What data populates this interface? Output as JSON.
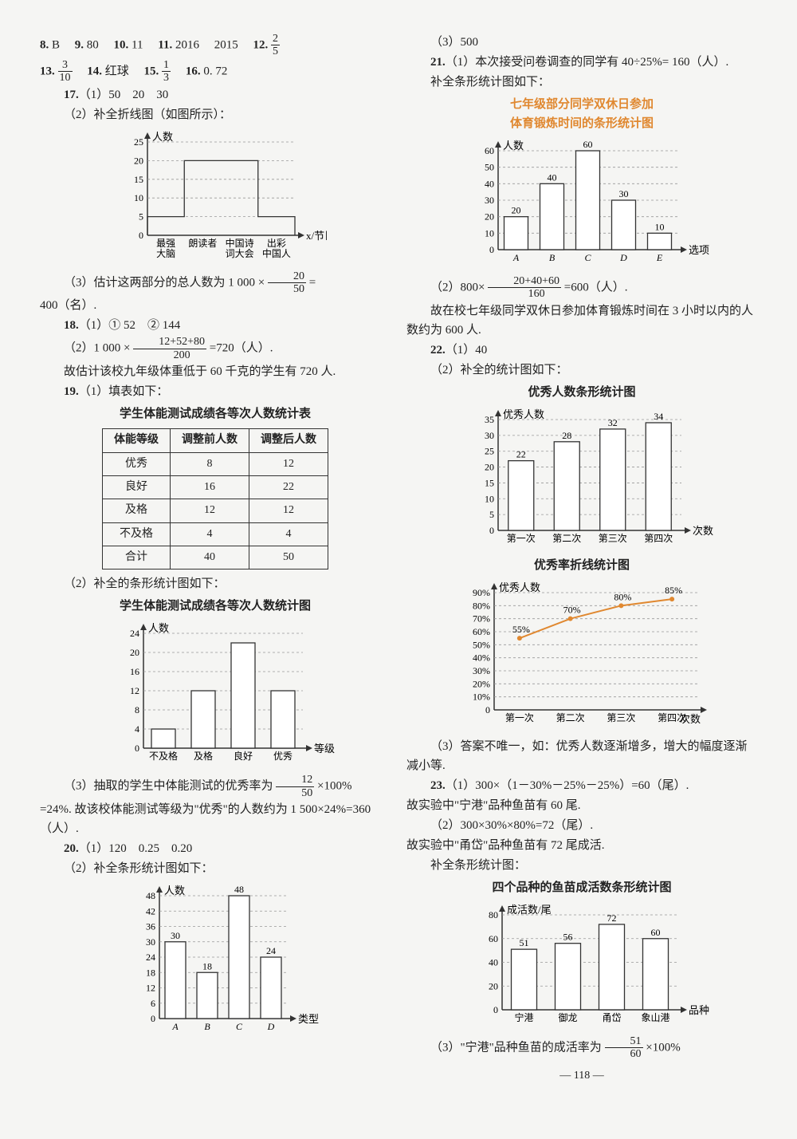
{
  "col1": {
    "line1_parts": [
      "8.",
      "B",
      "9.",
      "80",
      "10.",
      "11",
      "11.",
      "2016",
      "2015",
      "12."
    ],
    "line1_frac": {
      "num": "2",
      "den": "5"
    },
    "line2_a": "13.",
    "line2_frac1": {
      "num": "3",
      "den": "10"
    },
    "line2_b": "14.",
    "line2_red": "红球",
    "line2_c": "15.",
    "line2_frac2": {
      "num": "1",
      "den": "3"
    },
    "line2_d": "16.",
    "line2_val": "0. 72",
    "l17a": "17.（1）50　20　30",
    "l17b": "（2）补全折线图（如图所示）：",
    "chart17": {
      "ylabel": "人数",
      "xlabel": "x/节目",
      "yticks": [
        0,
        5,
        10,
        15,
        20,
        25
      ],
      "cats": [
        "最强\n大脑",
        "朗读者",
        "中国诗\n词大会",
        "出彩\n中国人"
      ],
      "vals": [
        5,
        20,
        20,
        5
      ],
      "stroke": "#333",
      "dash": "#999"
    },
    "l17c_a": "（3）估计这两部分的总人数为 1 000 ×",
    "l17c_frac": {
      "num": "20",
      "den": "50"
    },
    "l17c_b": " =",
    "l17c_res": "400（名）.",
    "l18a": "18.（1）① 52　② 144",
    "l18b_a": "（2）1 000 ×",
    "l18b_frac": {
      "num": "12+52+80",
      "den": "200"
    },
    "l18b_b": "=720（人）.",
    "l18c": "故估计该校九年级体重低于 60 千克的学生有 720 人.",
    "l19a": "19.（1）填表如下：",
    "table19_title": "学生体能测试成绩各等次人数统计表",
    "table19": {
      "headers": [
        "体能等级",
        "调整前人数",
        "调整后人数"
      ],
      "rows": [
        [
          "优秀",
          "8",
          "12"
        ],
        [
          "良好",
          "16",
          "22"
        ],
        [
          "及格",
          "12",
          "12"
        ],
        [
          "不及格",
          "4",
          "4"
        ],
        [
          "合计",
          "40",
          "50"
        ]
      ]
    },
    "l19b": "（2）补全的条形统计图如下：",
    "chart19_title": "学生体能测试成绩各等次人数统计图",
    "chart19": {
      "ylabel": "人数",
      "xlabel": "等级",
      "yticks": [
        0,
        4,
        8,
        12,
        16,
        20,
        24
      ],
      "cats": [
        "不及格",
        "及格",
        "良好",
        "优秀"
      ],
      "vals": [
        4,
        12,
        22,
        12
      ],
      "stroke": "#333",
      "dash": "#999"
    },
    "l19c_a": "（3）抽取的学生中体能测试的优秀率为",
    "l19c_frac": {
      "num": "12",
      "den": "50"
    },
    "l19c_b": "×100%",
    "l19d": "=24%. 故该校体能测试等级为\"优秀\"的人数约为 1 500×24%=360（人）.",
    "l20a": "20.（1）120　0.25　0.20",
    "l20b": "（2）补全条形统计图如下：",
    "chart20": {
      "ylabel": "人数",
      "xlabel": "类型",
      "yticks": [
        0,
        6,
        12,
        18,
        24,
        30,
        36,
        42,
        48
      ],
      "cats": [
        "A",
        "B",
        "C",
        "D"
      ],
      "vals": [
        30,
        18,
        48,
        24
      ],
      "stroke": "#333",
      "dash": "#999"
    }
  },
  "col2": {
    "l20c": "（3）500",
    "l21a": "21.（1）本次接受问卷调查的同学有 40÷25%= 160（人）.",
    "l21b": "补全条形统计图如下：",
    "chart21_title1": "七年级部分同学双休日参加",
    "chart21_title2": "体育锻炼时间的条形统计图",
    "chart21": {
      "ylabel": "人数",
      "xlabel": "选项",
      "yticks": [
        0,
        10,
        20,
        30,
        40,
        50,
        60
      ],
      "cats": [
        "A",
        "B",
        "C",
        "D",
        "E"
      ],
      "vals": [
        20,
        40,
        60,
        30,
        10
      ],
      "stroke": "#333",
      "dash": "#999"
    },
    "l21c_a": "（2）800×",
    "l21c_frac": {
      "num": "20+40+60",
      "den": "160"
    },
    "l21c_b": "=600（人）.",
    "l21d": "故在校七年级同学双休日参加体育锻炼时间在 3 小时以内的人数约为 600 人.",
    "l22a": "22.（1）40",
    "l22b": "（2）补全的统计图如下：",
    "chart22a_title": "优秀人数条形统计图",
    "chart22a": {
      "ylabel": "优秀人数",
      "xlabel": "次数",
      "yticks": [
        0,
        5,
        10,
        15,
        20,
        25,
        30,
        35
      ],
      "cats": [
        "第一次",
        "第二次",
        "第三次",
        "第四次"
      ],
      "vals": [
        22,
        28,
        32,
        34
      ],
      "stroke": "#333",
      "dash": "#999"
    },
    "chart22b_title": "优秀率折线统计图",
    "chart22b": {
      "ylabel": "优秀人数",
      "xlabel": "次数",
      "yticks": [
        "0",
        "10%",
        "20%",
        "30%",
        "40%",
        "50%",
        "60%",
        "70%",
        "80%",
        "90%"
      ],
      "cats": [
        "第一次",
        "第二次",
        "第三次",
        "第四次"
      ],
      "vals": [
        55,
        70,
        80,
        85
      ],
      "labels": [
        "55%",
        "70%",
        "80%",
        "85%"
      ],
      "stroke": "#333",
      "line": "#e08830",
      "dash": "#999"
    },
    "l22c": "（3）答案不唯一，如：优秀人数逐渐增多，增大的幅度逐渐减小等.",
    "l23a": "23.（1）300×（1－30%－25%－25%）=60（尾）.",
    "l23b": "故实验中\"宁港\"品种鱼苗有 60 尾.",
    "l23c": "（2）300×30%×80%=72（尾）.",
    "l23d": "故实验中\"甬岱\"品种鱼苗有 72 尾成活.",
    "l23e": "补全条形统计图：",
    "chart23_title": "四个品种的鱼苗成活数条形统计图",
    "chart23": {
      "ylabel": "成活数/尾",
      "xlabel": "品种",
      "yticks": [
        0,
        20,
        40,
        60,
        80
      ],
      "cats": [
        "宁港",
        "御龙",
        "甬岱",
        "象山港"
      ],
      "vals": [
        51,
        56,
        72,
        60
      ],
      "stroke": "#333",
      "dash": "#999"
    },
    "l23f_a": "（3）\"宁港\"品种鱼苗的成活率为",
    "l23f_frac": {
      "num": "51",
      "den": "60"
    },
    "l23f_b": "×100%"
  },
  "page": "— 118 —"
}
